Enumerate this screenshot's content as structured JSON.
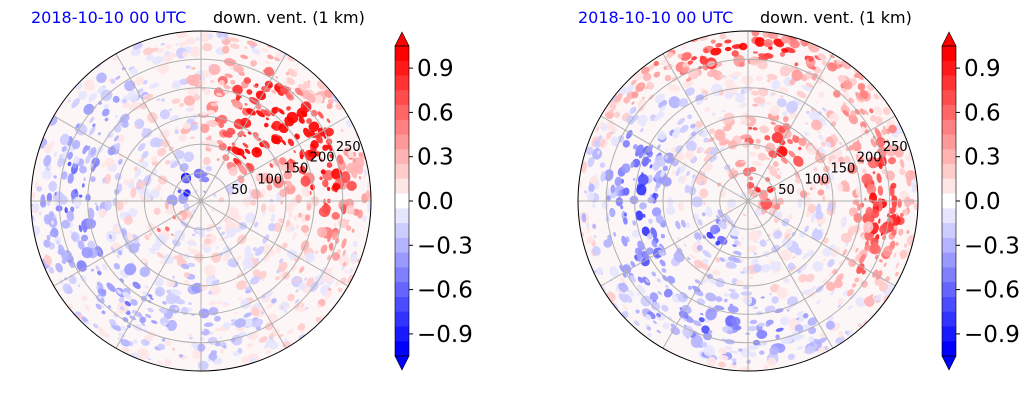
{
  "chart_data": [
    {
      "type": "heatmap",
      "projection": "polar",
      "title_left": "2018-10-10 00 UTC",
      "title_right": "down. vent. (1 km)",
      "radial_ticks": [
        "50",
        "100",
        "150",
        "200",
        "250"
      ],
      "radial_tick_values": [
        50,
        100,
        150,
        200,
        250
      ],
      "rmax": 300,
      "grid": true,
      "colorbar": {
        "ticks": [
          "0.9",
          "0.6",
          "0.3",
          "0.0",
          "−0.3",
          "−0.6",
          "−0.9"
        ],
        "tick_values": [
          0.9,
          0.6,
          0.3,
          0.0,
          -0.3,
          -0.6,
          -0.9
        ],
        "range": [
          -1.05,
          1.05
        ],
        "extend": "both",
        "colormap": "bwr",
        "levels": 21
      },
      "features": [
        {
          "r": 180,
          "theta": 50,
          "value": 1.0,
          "spread_r": 70,
          "spread_t": 30
        },
        {
          "r": 230,
          "theta": 15,
          "value": 0.9,
          "spread_r": 45,
          "spread_t": 30
        },
        {
          "r": 110,
          "theta": 50,
          "value": 0.8,
          "spread_r": 30,
          "spread_t": 25
        },
        {
          "r": 70,
          "theta": -150,
          "value": 0.7,
          "spread_r": 25,
          "spread_t": 20
        },
        {
          "r": 40,
          "theta": 130,
          "value": -0.8,
          "spread_r": 25,
          "spread_t": 60
        },
        {
          "r": 230,
          "theta": 170,
          "value": -0.4,
          "spread_r": 50,
          "spread_t": 40
        },
        {
          "r": 200,
          "theta": -120,
          "value": -0.3,
          "spread_r": 60,
          "spread_t": 40
        }
      ]
    },
    {
      "type": "heatmap",
      "projection": "polar",
      "title_left": "2018-10-10 00 UTC",
      "title_right": "down. vent. (1 km)",
      "radial_ticks": [
        "50",
        "100",
        "150",
        "200",
        "250"
      ],
      "radial_tick_values": [
        50,
        100,
        150,
        200,
        250
      ],
      "rmax": 300,
      "grid": true,
      "colorbar": {
        "ticks": [
          "0.9",
          "0.6",
          "0.3",
          "0.0",
          "−0.3",
          "−0.6",
          "−0.9"
        ],
        "tick_values": [
          0.9,
          0.6,
          0.3,
          0.0,
          -0.3,
          -0.6,
          -0.9
        ],
        "range": [
          -1.05,
          1.05
        ],
        "extend": "both",
        "colormap": "bwr",
        "levels": 21
      },
      "features": [
        {
          "r": 40,
          "theta": 60,
          "value": 1.0,
          "spread_r": 20,
          "spread_t": 80
        },
        {
          "r": 120,
          "theta": 60,
          "value": 0.8,
          "spread_r": 30,
          "spread_t": 40
        },
        {
          "r": 270,
          "theta": 90,
          "value": 0.9,
          "spread_r": 30,
          "spread_t": 40
        },
        {
          "r": 240,
          "theta": 0,
          "value": 0.8,
          "spread_r": 40,
          "spread_t": 35
        },
        {
          "r": 80,
          "theta": -130,
          "value": -0.8,
          "spread_r": 25,
          "spread_t": 25
        },
        {
          "r": 200,
          "theta": 180,
          "value": -0.6,
          "spread_r": 50,
          "spread_t": 40
        },
        {
          "r": 230,
          "theta": -100,
          "value": -0.4,
          "spread_r": 50,
          "spread_t": 40
        }
      ]
    }
  ],
  "colors": {
    "title_left": "#0000ff",
    "title_right": "#000000",
    "positive": "#ff0000",
    "negative": "#0000ff",
    "grid": "#b0b0b0"
  }
}
